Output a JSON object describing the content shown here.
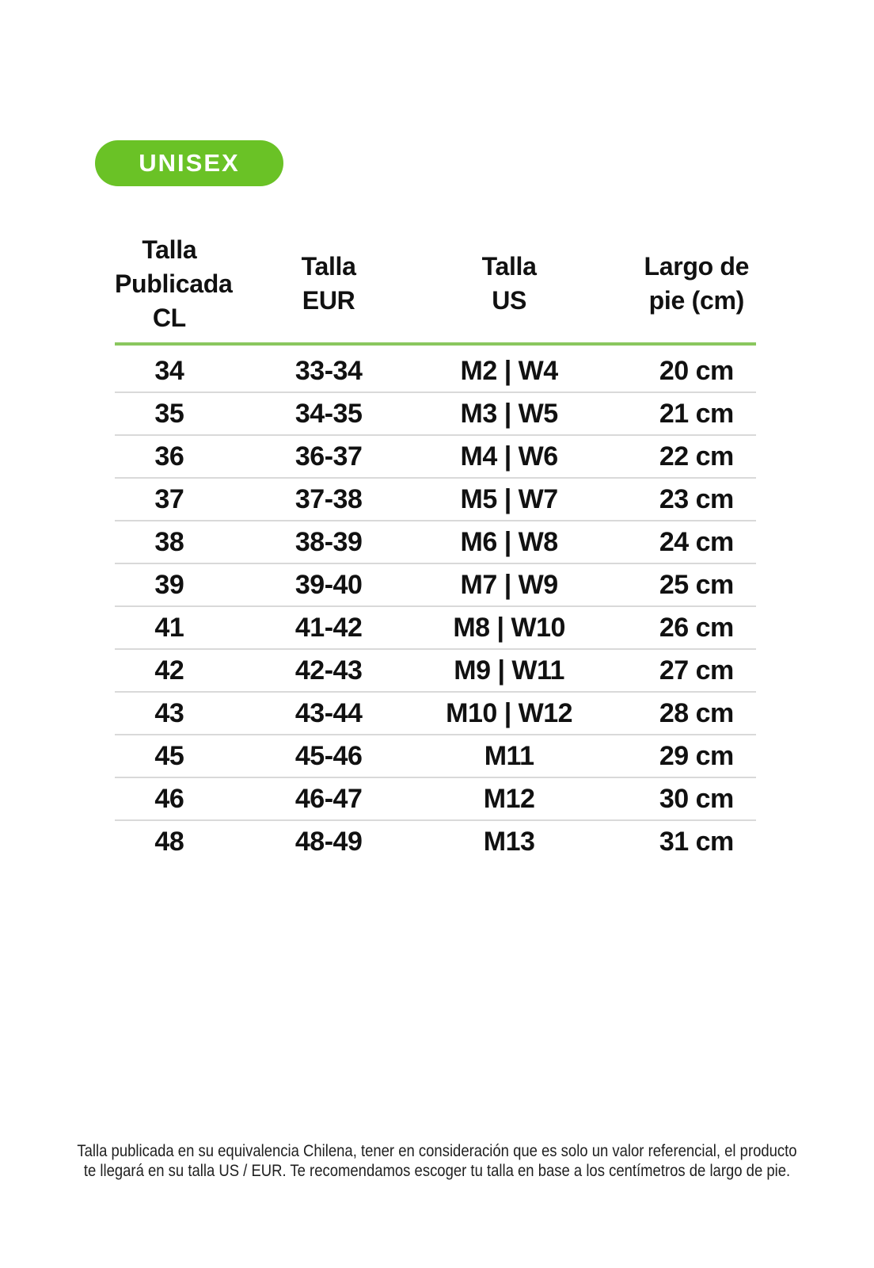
{
  "badge": {
    "label": "UNISEX"
  },
  "colors": {
    "badge_green": "#6ac226",
    "header_rule_green": "#8ac75e",
    "row_divider": "#d9d9d9",
    "text": "#111111",
    "footer_text": "#1f1f1f"
  },
  "table": {
    "columns": [
      {
        "label": "Talla\nPublicada\nCL"
      },
      {
        "label": "Talla\nEUR"
      },
      {
        "label": "Talla\nUS"
      },
      {
        "label": "Largo de\npie (cm)"
      }
    ],
    "rows": [
      [
        "34",
        "33-34",
        "M2 | W4",
        "20 cm"
      ],
      [
        "35",
        "34-35",
        "M3 | W5",
        "21 cm"
      ],
      [
        "36",
        "36-37",
        "M4 | W6",
        "22 cm"
      ],
      [
        "37",
        "37-38",
        "M5 | W7",
        "23 cm"
      ],
      [
        "38",
        "38-39",
        "M6 | W8",
        "24 cm"
      ],
      [
        "39",
        "39-40",
        "M7 | W9",
        "25 cm"
      ],
      [
        "41",
        "41-42",
        "M8 | W10",
        "26 cm"
      ],
      [
        "42",
        "42-43",
        "M9 | W11",
        "27 cm"
      ],
      [
        "43",
        "43-44",
        "M10 | W12",
        "28 cm"
      ],
      [
        "45",
        "45-46",
        "M11",
        "29 cm"
      ],
      [
        "46",
        "46-47",
        "M12",
        "30 cm"
      ],
      [
        "48",
        "48-49",
        "M13",
        "31 cm"
      ]
    ]
  },
  "footer": {
    "note": "Talla publicada en su equivalencia Chilena, tener en consideración que es solo un valor referencial, el producto\nte llegará en su talla US / EUR. Te recomendamos escoger tu talla en base a los centímetros de largo de pie."
  }
}
